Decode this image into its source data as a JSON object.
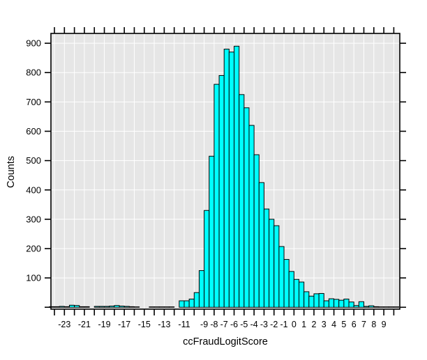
{
  "figure": {
    "background": "#ffffff",
    "plot_background": "#e6e6e6",
    "gridline_color": "#ffffff",
    "bar_fill": "#00ffff",
    "bar_stroke": "#000000",
    "frame_color": "#000000",
    "tick_color": "#000000",
    "text_color": "#000000"
  },
  "chart_data": {
    "type": "bar",
    "subtype": "histogram",
    "title": "",
    "xlabel": "ccFraudLogitScore",
    "ylabel": "Counts",
    "grid": true,
    "legend": false,
    "bin_width": 0.5,
    "x_axis_range": [
      -24.35,
      10.6
    ],
    "y_axis_range": [
      -6.5,
      933.5
    ],
    "x_tick_values": [
      -24,
      -23,
      -22,
      -21,
      -20,
      -19,
      -18,
      -17,
      -16,
      -15,
      -14,
      -13,
      -12,
      -11,
      -10,
      -9,
      -8,
      -7,
      -6,
      -5,
      -4,
      -3,
      -2,
      -1,
      0,
      1,
      2,
      3,
      4,
      5,
      6,
      7,
      8,
      9,
      10
    ],
    "x_tick_labels": [
      "",
      "-23",
      "",
      "-21",
      "",
      "-19",
      "",
      "-17",
      "",
      "-15",
      "",
      "-13",
      "",
      "-11",
      "",
      "-9",
      "-8",
      "-7",
      "-6",
      "-5",
      "-4",
      "-3",
      "-2",
      "-1",
      "0",
      "1",
      "2",
      "3",
      "4",
      "5",
      "6",
      "7",
      "8",
      "9",
      ""
    ],
    "y_tick_values": [
      0,
      100,
      200,
      300,
      400,
      500,
      600,
      700,
      800,
      900
    ],
    "y_tick_labels": [
      "",
      "100",
      "200",
      "300",
      "400",
      "500",
      "600",
      "700",
      "800",
      "900"
    ],
    "bin_start": [
      -24.5,
      -24.0,
      -23.5,
      -23.0,
      -22.5,
      -22.0,
      -21.5,
      -21.0,
      -20.5,
      -20.0,
      -19.5,
      -19.0,
      -18.5,
      -18.0,
      -17.5,
      -17.0,
      -16.5,
      -16.0,
      -15.5,
      -15.0,
      -14.5,
      -14.0,
      -13.5,
      -13.0,
      -12.5,
      -12.0,
      -11.5,
      -11.0,
      -10.5,
      -10.0,
      -9.5,
      -9.0,
      -8.5,
      -8.0,
      -7.5,
      -7.0,
      -6.5,
      -6.0,
      -5.5,
      -5.0,
      -4.5,
      -4.0,
      -3.5,
      -3.0,
      -2.5,
      -2.0,
      -1.5,
      -1.0,
      -0.5,
      0.0,
      0.5,
      1.0,
      1.5,
      2.0,
      2.5,
      3.0,
      3.5,
      4.0,
      4.5,
      5.0,
      5.5,
      6.0,
      6.5,
      7.0,
      7.5,
      8.0,
      8.5,
      9.0,
      9.5,
      10.0
    ],
    "counts": [
      2,
      2,
      3,
      2,
      7,
      6,
      2,
      2,
      0,
      3,
      3,
      3,
      4,
      6,
      4,
      3,
      2,
      1,
      0,
      0,
      1,
      1,
      1,
      1,
      1,
      0,
      22,
      22,
      28,
      50,
      125,
      330,
      515,
      760,
      790,
      880,
      870,
      890,
      725,
      680,
      620,
      520,
      425,
      335,
      300,
      278,
      207,
      163,
      122,
      95,
      86,
      53,
      38,
      46,
      47,
      22,
      29,
      27,
      24,
      28,
      18,
      6,
      19,
      3,
      5,
      2,
      1,
      1,
      1,
      1
    ]
  }
}
